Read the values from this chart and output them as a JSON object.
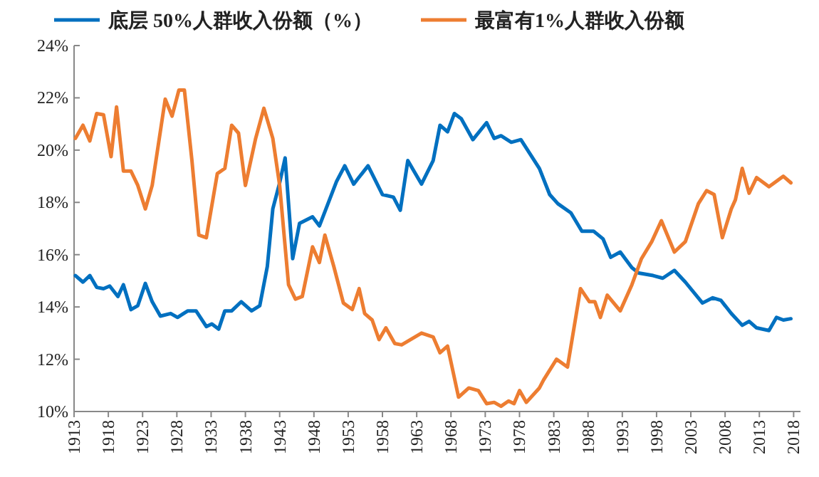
{
  "chart_data": {
    "type": "line",
    "legend": "top",
    "grid": false,
    "line_style": "solid",
    "marker": "none",
    "xlim": [
      1913,
      2019
    ],
    "xticks": [
      1913,
      1918,
      1923,
      1928,
      1933,
      1938,
      1943,
      1948,
      1953,
      1958,
      1963,
      1968,
      1973,
      1978,
      1983,
      1988,
      1993,
      1998,
      2003,
      2008,
      2013,
      2018
    ],
    "ylim": [
      10,
      24
    ],
    "yticks": [
      {
        "value": 10,
        "label": "10%"
      },
      {
        "value": 12,
        "label": "12%"
      },
      {
        "value": 14,
        "label": "14%"
      },
      {
        "value": 16,
        "label": "16%"
      },
      {
        "value": 18,
        "label": "18%"
      },
      {
        "value": 20,
        "label": "20%"
      },
      {
        "value": 22,
        "label": "22%"
      },
      {
        "value": 24,
        "label": "24%"
      }
    ],
    "series": [
      {
        "name": "底层 50%人群收入份额（%）",
        "color": "#0070c0",
        "x": [
          1913.2,
          1914.3,
          1915.3,
          1916.3,
          1917.3,
          1918.2,
          1919.4,
          1920.2,
          1921.3,
          1922.3,
          1923.4,
          1924.4,
          1925.6,
          1927.1,
          1928.1,
          1929.6,
          1930.8,
          1932.3,
          1933.1,
          1934.1,
          1935.0,
          1936.0,
          1937.4,
          1938.9,
          1940.1,
          1941.2,
          1942.0,
          1943.0,
          1943.8,
          1944.9,
          1945.9,
          1947.8,
          1948.8,
          1951.3,
          1952.5,
          1953.8,
          1955.9,
          1958.0,
          1959.6,
          1960.6,
          1961.7,
          1963.7,
          1965.4,
          1966.4,
          1967.5,
          1968.5,
          1969.5,
          1971.2,
          1973.2,
          1974.3,
          1975.3,
          1976.8,
          1978.2,
          1980.9,
          1982.4,
          1983.6,
          1985.5,
          1987.1,
          1988.8,
          1990.2,
          1991.3,
          1992.7,
          1994.4,
          1995.4,
          1997.5,
          1998.9,
          2000.6,
          2002.2,
          2004.7,
          2006.2,
          2007.4,
          2008.9,
          2010.5,
          2011.5,
          2012.6,
          2014.4,
          2015.5,
          2016.5,
          2017.6
        ],
        "values": [
          15.2,
          14.95,
          15.2,
          14.75,
          14.7,
          14.8,
          14.4,
          14.85,
          13.9,
          14.05,
          14.9,
          14.2,
          13.65,
          13.75,
          13.6,
          13.85,
          13.85,
          13.25,
          13.35,
          13.15,
          13.85,
          13.85,
          14.2,
          13.85,
          14.05,
          15.55,
          17.75,
          18.75,
          19.7,
          15.85,
          17.2,
          17.45,
          17.1,
          18.8,
          19.4,
          18.7,
          19.4,
          18.3,
          18.2,
          17.7,
          19.6,
          18.7,
          19.6,
          20.95,
          20.7,
          21.4,
          21.2,
          20.4,
          21.05,
          20.45,
          20.55,
          20.3,
          20.4,
          19.3,
          18.3,
          17.95,
          17.6,
          16.9,
          16.9,
          16.6,
          15.9,
          16.1,
          15.5,
          15.3,
          15.2,
          15.1,
          15.4,
          14.95,
          14.15,
          14.35,
          14.25,
          13.75,
          13.3,
          13.45,
          13.2,
          13.1,
          13.6,
          13.5,
          13.55
        ]
      },
      {
        "name": "最富有1%人群收入份额",
        "color": "#ed7d31",
        "x": [
          1913.2,
          1914.3,
          1915.3,
          1916.3,
          1917.3,
          1918.4,
          1919.2,
          1920.2,
          1921.3,
          1922.3,
          1923.4,
          1924.4,
          1926.3,
          1927.3,
          1928.3,
          1929.1,
          1930.2,
          1931.2,
          1932.3,
          1933.9,
          1935.0,
          1936.0,
          1937.0,
          1938.0,
          1939.5,
          1940.7,
          1942.0,
          1943.0,
          1944.3,
          1945.3,
          1946.3,
          1947.8,
          1948.8,
          1949.6,
          1950.9,
          1952.3,
          1953.6,
          1954.6,
          1955.4,
          1956.5,
          1957.5,
          1958.5,
          1959.8,
          1960.8,
          1963.7,
          1965.4,
          1966.4,
          1967.5,
          1969.1,
          1970.6,
          1972.0,
          1973.2,
          1974.3,
          1975.3,
          1976.4,
          1977.2,
          1978.0,
          1979.0,
          1980.9,
          1981.5,
          1983.4,
          1985.0,
          1986.9,
          1988.2,
          1989.0,
          1989.8,
          1990.8,
          1992.7,
          1994.4,
          1995.8,
          1997.3,
          1998.7,
          2000.6,
          2002.2,
          2004.1,
          2005.3,
          2006.4,
          2007.6,
          2008.9,
          2009.5,
          2010.5,
          2011.5,
          2012.6,
          2014.4,
          2016.5,
          2017.6
        ],
        "values": [
          20.45,
          20.95,
          20.35,
          21.4,
          21.35,
          19.75,
          21.65,
          19.2,
          19.2,
          18.65,
          17.75,
          18.65,
          21.95,
          21.3,
          22.3,
          22.3,
          19.6,
          16.75,
          16.65,
          19.1,
          19.3,
          20.95,
          20.65,
          18.65,
          20.45,
          21.6,
          20.45,
          18.65,
          14.85,
          14.3,
          14.4,
          16.3,
          15.7,
          16.75,
          15.55,
          14.15,
          13.9,
          14.7,
          13.75,
          13.5,
          12.75,
          13.2,
          12.6,
          12.55,
          13.0,
          12.85,
          12.25,
          12.5,
          10.55,
          10.9,
          10.8,
          10.3,
          10.35,
          10.2,
          10.4,
          10.3,
          10.8,
          10.35,
          10.9,
          11.2,
          12.0,
          11.7,
          14.7,
          14.2,
          14.2,
          13.6,
          14.45,
          13.85,
          14.85,
          15.85,
          16.5,
          17.3,
          16.1,
          16.5,
          17.95,
          18.45,
          18.3,
          16.65,
          17.75,
          18.1,
          19.3,
          18.35,
          18.95,
          18.6,
          19.0,
          18.75
        ]
      }
    ]
  }
}
